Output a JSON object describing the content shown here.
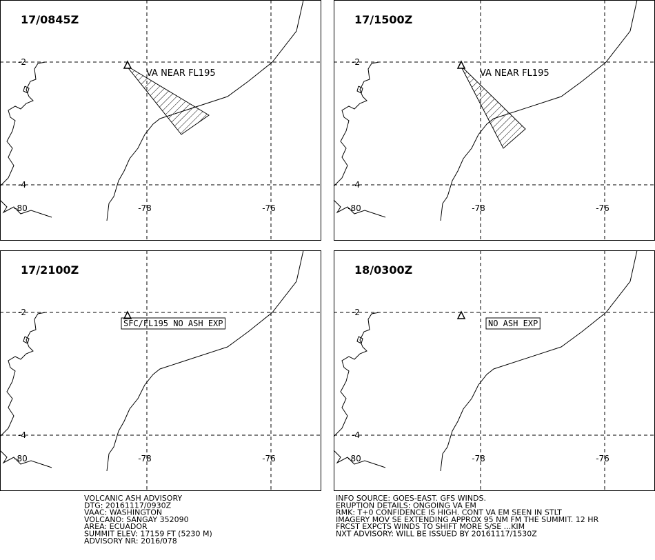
{
  "panels": [
    {
      "time": "17/0845Z",
      "ash_label": "VA NEAR FL195"
    },
    {
      "time": "17/1500Z",
      "ash_label": "VA NEAR FL195"
    },
    {
      "time": "17/2100Z",
      "ash_label": "SFC/FL195 NO ASH EXP"
    },
    {
      "time": "18/0300Z",
      "ash_label": "NO ASH EXP"
    }
  ],
  "map": {
    "lat_ticks": [
      -2,
      -4
    ],
    "lon_ticks": [
      -80,
      -78,
      -76
    ]
  },
  "advisory": {
    "left": [
      "VOLCANIC ASH ADVISORY",
      "DTG: 20161117/0930Z",
      "VAAC: WASHINGTON",
      "VOLCANO: SANGAY 352090",
      "AREA: ECUADOR",
      "SUMMIT ELEV: 17159 FT (5230 M)",
      "ADVISORY NR: 2016/078"
    ],
    "right": [
      "INFO SOURCE: GOES-EAST. GFS WINDS.",
      "ERUPTION DETAILS: ONGOING VA EM",
      "RMK: T+0 CONFIDENCE IS HIGH. CONT VA EM SEEN IN STLT",
      "IMAGERY MOV SE EXTENDING APPROX 95 NM FM THE SUMMIT. 12 HR",
      "FRCST EXPCTS WINDS TO SHIFT MORE S/SE ...KIM",
      "NXT ADVISORY: WILL BE ISSUED BY 20161117/1530Z"
    ]
  }
}
